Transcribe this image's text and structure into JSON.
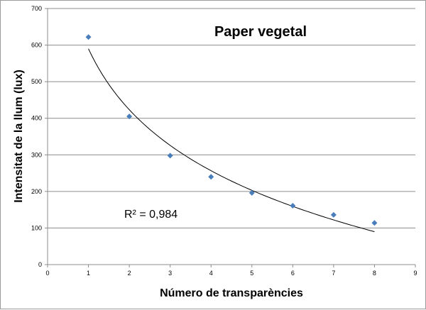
{
  "chart_data": {
    "type": "scatter",
    "title": "Paper vegetal",
    "xlabel": "Número de transparències",
    "ylabel": "Intensitat de la llum (lux)",
    "xlim": [
      0,
      9
    ],
    "ylim": [
      0,
      700
    ],
    "x_ticks": [
      0,
      1,
      2,
      3,
      4,
      5,
      6,
      7,
      8,
      9
    ],
    "y_ticks": [
      0,
      100,
      200,
      300,
      400,
      500,
      600,
      700
    ],
    "grid": {
      "horizontal": true,
      "vertical": false
    },
    "legend": "none",
    "series": [
      {
        "x": [
          1,
          2,
          3,
          4,
          5,
          6,
          7,
          8
        ],
        "y": [
          622,
          405,
          298,
          240,
          196,
          161,
          136,
          114
        ],
        "marker": "diamond",
        "color": "#4a7ebb"
      }
    ],
    "trendline": {
      "type": "logarithmic",
      "x_range": [
        1,
        8
      ],
      "y_at_start": 590,
      "y_at_end": 90,
      "color": "#000000"
    },
    "annotations": [
      {
        "text": "R² = 0,984"
      }
    ]
  }
}
